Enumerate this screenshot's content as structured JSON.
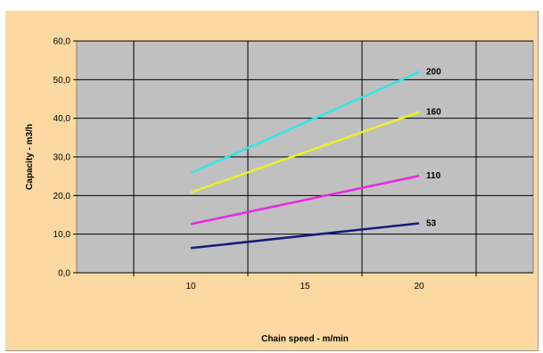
{
  "chart_data": {
    "type": "line",
    "xlabel": "Chain speed - m/min",
    "ylabel": "Capacity - m3/h",
    "x": [
      10,
      20
    ],
    "xticks": [
      "10",
      "15",
      "20"
    ],
    "xlim": [
      5,
      25
    ],
    "ylim": [
      0,
      60
    ],
    "yticks": [
      "0,0",
      "10,0",
      "20,0",
      "30,0",
      "40,0",
      "50,0",
      "60,0"
    ],
    "grid": true,
    "plot_background": "#c0c0c0",
    "chart_background": "#fcd9a0",
    "series": [
      {
        "name": "200",
        "values": [
          25.8,
          52.0
        ],
        "color": "#33e6e6"
      },
      {
        "name": "160",
        "values": [
          20.8,
          41.6
        ],
        "color": "#f0f028"
      },
      {
        "name": "110",
        "values": [
          12.6,
          25.1
        ],
        "color": "#e628e6"
      },
      {
        "name": "53",
        "values": [
          6.4,
          12.8
        ],
        "color": "#1a1a7a"
      }
    ]
  }
}
